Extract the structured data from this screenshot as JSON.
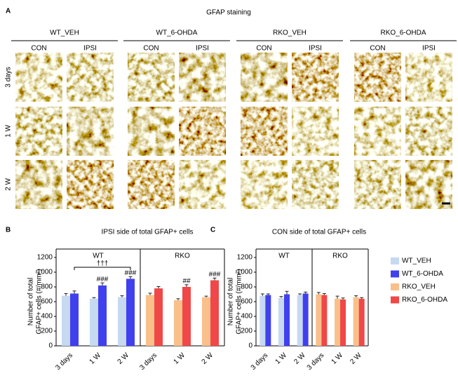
{
  "panel_labels": [
    "A",
    "B",
    "C"
  ],
  "panel_a": {
    "title": "GFAP staining",
    "groups": [
      "WT_VEH",
      "WT_6-OHDA",
      "RKO_VEH",
      "RKO_6-OHDA"
    ],
    "sides": [
      "CON",
      "IPSI"
    ],
    "rows": [
      "3 days",
      "1 W",
      "2 W"
    ]
  },
  "chart_data": [
    {
      "type": "bar",
      "title": "IPSI side of total GFAP+ cells",
      "y_label": [
        "Number of total",
        "GFAP+ cells (#/mm²)"
      ],
      "groups": [
        "WT",
        "RKO"
      ],
      "categories": [
        "3 days",
        "1 W",
        "2 W",
        "3 days",
        "1 W",
        "2 W"
      ],
      "series": [
        {
          "color": "#c6d9f1",
          "values": [
            680,
            640,
            660,
            null,
            null,
            null
          ],
          "errors": [
            30,
            15,
            20,
            null,
            null,
            null
          ]
        },
        {
          "color": "#4040ee",
          "values": [
            710,
            820,
            910,
            null,
            null,
            null
          ],
          "errors": [
            35,
            35,
            30,
            null,
            null,
            null
          ],
          "annotations": [
            null,
            "###",
            "###",
            null,
            null,
            null
          ]
        },
        {
          "color": "#f9c08a",
          "values": [
            null,
            null,
            null,
            690,
            620,
            660
          ],
          "errors": [
            null,
            null,
            null,
            25,
            20,
            15
          ]
        },
        {
          "color": "#f04848",
          "values": [
            null,
            null,
            null,
            780,
            800,
            890
          ],
          "errors": [
            null,
            null,
            null,
            25,
            30,
            30
          ],
          "annotations": [
            null,
            null,
            null,
            null,
            "##",
            "###"
          ]
        }
      ],
      "bracket_label": "†††",
      "ylim": [
        0,
        1200
      ],
      "yticks": [
        0,
        200,
        400,
        600,
        800,
        1000,
        1200
      ]
    },
    {
      "type": "bar",
      "title": "CON side of total GFAP+ cells",
      "y_label": [
        "Number of total",
        "GFAP+ cells (#/mm²)"
      ],
      "groups": [
        "WT",
        "RKO"
      ],
      "categories": [
        "3 days",
        "1 W",
        "2 W",
        "3 days",
        "1 W",
        "2 W"
      ],
      "series": [
        {
          "name": "WT_VEH",
          "color": "#c6d9f1",
          "values": [
            680,
            650,
            690,
            null,
            null,
            null
          ],
          "errors": [
            25,
            20,
            15,
            null,
            null,
            null
          ]
        },
        {
          "name": "WT_6-OHDA",
          "color": "#4040ee",
          "values": [
            690,
            700,
            710,
            null,
            null,
            null
          ],
          "errors": [
            15,
            40,
            20,
            null,
            null,
            null
          ]
        },
        {
          "name": "RKO_VEH",
          "color": "#f9c08a",
          "values": [
            null,
            null,
            null,
            700,
            640,
            660
          ],
          "errors": [
            null,
            null,
            null,
            25,
            35,
            20
          ]
        },
        {
          "name": "RKO_6-OHDA",
          "color": "#f04848",
          "values": [
            null,
            null,
            null,
            690,
            630,
            640
          ],
          "errors": [
            null,
            null,
            null,
            20,
            20,
            15
          ]
        }
      ],
      "ylim": [
        0,
        1200
      ],
      "yticks": [
        0,
        200,
        400,
        600,
        800,
        1000,
        1200
      ]
    }
  ]
}
